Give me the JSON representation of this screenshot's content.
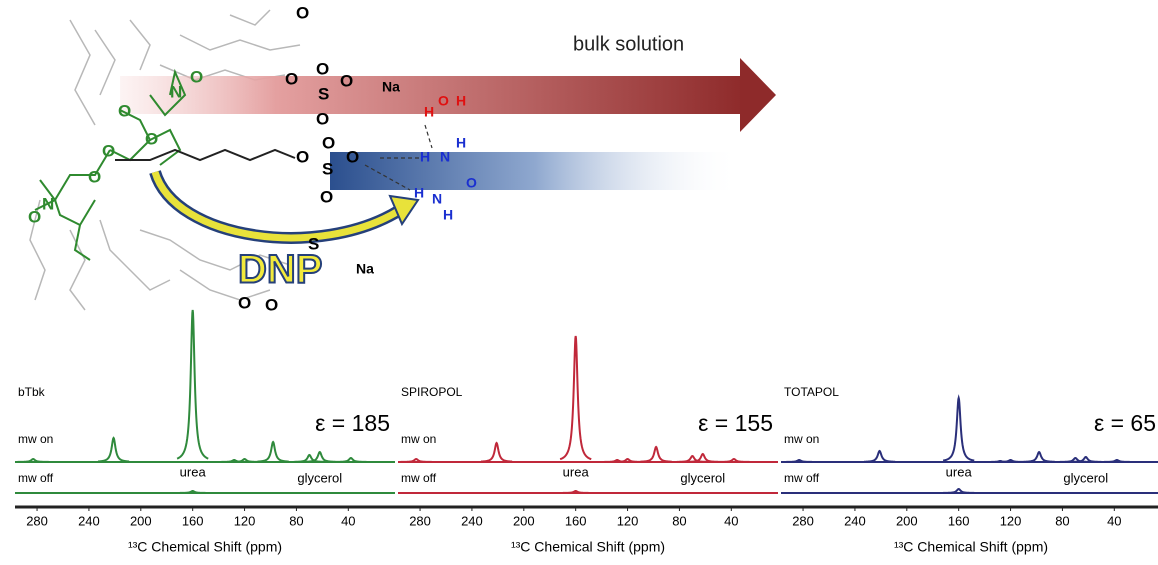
{
  "scheme": {
    "title": "bulk solution",
    "dnp": "DNP",
    "labels": [
      "O",
      "S",
      "O",
      "O",
      "O",
      "Na",
      "O",
      "S",
      "O",
      "O",
      "O",
      "H",
      "N",
      "H",
      "O",
      "H",
      "N",
      "H",
      "H",
      "O",
      "H",
      "Na",
      "S",
      "O",
      "O",
      "N",
      "O",
      "N",
      "O",
      "O",
      "O",
      "O",
      "O",
      "O"
    ]
  },
  "spectra": [
    {
      "name": "bTbk",
      "epsilon": "ε = 185",
      "mw_on_label": "mw on",
      "mw_off_label": "mw off",
      "peak_labels": [
        "urea",
        "glycerol"
      ],
      "color": "#2f8a3c",
      "xlim": [
        297,
        4
      ],
      "ylim": [
        0,
        160
      ],
      "xticks": [
        280,
        240,
        200,
        160,
        120,
        80,
        40
      ],
      "xlabel": "¹³C Chemical Shift (ppm)",
      "mw_on": {
        "positions": [
          283,
          221,
          160,
          128,
          120,
          98,
          70,
          62,
          38
        ],
        "heights": [
          3,
          24,
          152,
          2,
          3,
          20,
          7,
          10,
          4
        ]
      },
      "mw_off": {
        "positions": [
          160
        ],
        "heights": [
          2
        ]
      }
    },
    {
      "name": "SPIROPOL",
      "epsilon": "ε = 155",
      "mw_on_label": "mw on",
      "mw_off_label": "mw off",
      "peak_labels": [
        "urea",
        "glycerol"
      ],
      "color": "#c0283a",
      "xlim": [
        297,
        4
      ],
      "ylim": [
        0,
        160
      ],
      "xticks": [
        280,
        240,
        200,
        160,
        120,
        80,
        40
      ],
      "xlabel": "¹³C Chemical Shift (ppm)",
      "mw_on": {
        "positions": [
          283,
          221,
          160,
          128,
          120,
          98,
          70,
          62,
          38
        ],
        "heights": [
          3,
          19,
          126,
          2,
          3,
          15,
          6,
          8,
          3
        ]
      },
      "mw_off": {
        "positions": [
          160
        ],
        "heights": [
          2
        ]
      }
    },
    {
      "name": "TOTAPOL",
      "epsilon": "ε = 65",
      "mw_on_label": "mw on",
      "mw_off_label": "mw off",
      "peak_labels": [
        "urea",
        "glycerol"
      ],
      "color": "#2a2f7a",
      "xlim": [
        297,
        4
      ],
      "ylim": [
        0,
        160
      ],
      "xticks": [
        280,
        240,
        200,
        160,
        120,
        80,
        40
      ],
      "xlabel": "¹³C Chemical Shift (ppm)",
      "mw_on": {
        "positions": [
          283,
          221,
          160,
          128,
          120,
          98,
          70,
          62,
          38
        ],
        "heights": [
          2,
          11,
          64,
          1,
          2,
          10,
          4,
          5,
          2
        ]
      },
      "mw_off": {
        "positions": [
          160
        ],
        "heights": [
          4
        ]
      }
    }
  ]
}
